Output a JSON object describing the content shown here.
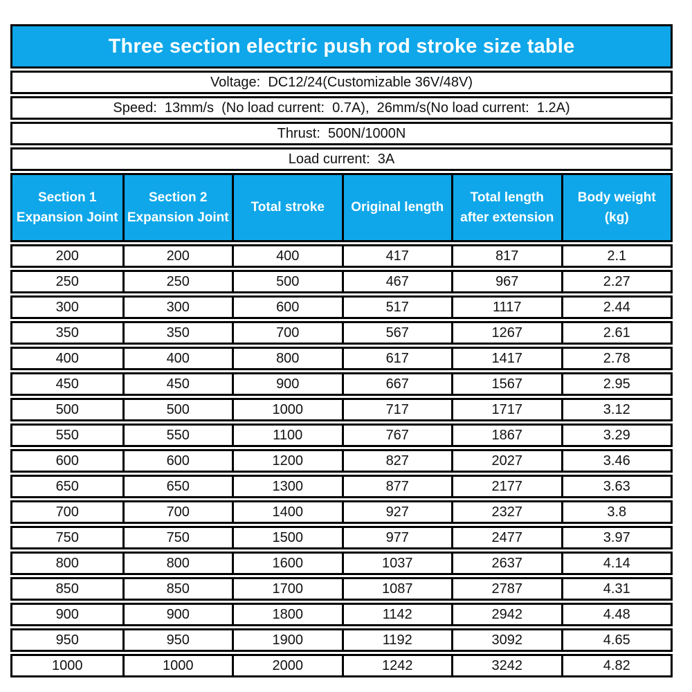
{
  "colors": {
    "accent_blue": "#0fa7e9",
    "border_black": "#000000",
    "header_text": "#ffffff",
    "body_text": "#111111",
    "page_background": "#ffffff"
  },
  "title": "Three section electric push rod stroke size table",
  "spec_rows": [
    {
      "id": "voltage",
      "text": "Voltage:  DC12/24(Customizable 36V/48V)"
    },
    {
      "id": "speed",
      "text": "Speed:  13mm/s  (No load current:  0.7A),  26mm/s(No load current:  1.2A)"
    },
    {
      "id": "thrust",
      "text": "Thrust:  500N/1000N"
    },
    {
      "id": "load_current",
      "text": "Load current:  3A"
    }
  ],
  "table": {
    "columns": [
      "Section 1\nExpansion Joint",
      "Section 2\nExpansion Joint",
      "Total stroke",
      "Original length",
      "Total length\nafter extension",
      "Body weight\n(kg)"
    ],
    "rows": [
      [
        "200",
        "200",
        "400",
        "417",
        "817",
        "2.1"
      ],
      [
        "250",
        "250",
        "500",
        "467",
        "967",
        "2.27"
      ],
      [
        "300",
        "300",
        "600",
        "517",
        "1117",
        "2.44"
      ],
      [
        "350",
        "350",
        "700",
        "567",
        "1267",
        "2.61"
      ],
      [
        "400",
        "400",
        "800",
        "617",
        "1417",
        "2.78"
      ],
      [
        "450",
        "450",
        "900",
        "667",
        "1567",
        "2.95"
      ],
      [
        "500",
        "500",
        "1000",
        "717",
        "1717",
        "3.12"
      ],
      [
        "550",
        "550",
        "1100",
        "767",
        "1867",
        "3.29"
      ],
      [
        "600",
        "600",
        "1200",
        "827",
        "2027",
        "3.46"
      ],
      [
        "650",
        "650",
        "1300",
        "877",
        "2177",
        "3.63"
      ],
      [
        "700",
        "700",
        "1400",
        "927",
        "2327",
        "3.8"
      ],
      [
        "750",
        "750",
        "1500",
        "977",
        "2477",
        "3.97"
      ],
      [
        "800",
        "800",
        "1600",
        "1037",
        "2637",
        "4.14"
      ],
      [
        "850",
        "850",
        "1700",
        "1087",
        "2787",
        "4.31"
      ],
      [
        "900",
        "900",
        "1800",
        "1142",
        "2942",
        "4.48"
      ],
      [
        "950",
        "950",
        "1900",
        "1192",
        "3092",
        "4.65"
      ],
      [
        "1000",
        "1000",
        "2000",
        "1242",
        "3242",
        "4.82"
      ]
    ]
  }
}
